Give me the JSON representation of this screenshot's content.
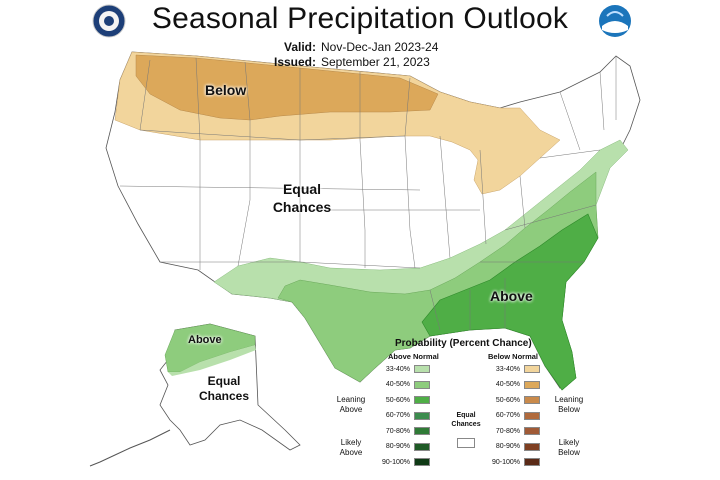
{
  "header": {
    "title": "Seasonal Precipitation Outlook",
    "valid_label": "Valid:",
    "valid_value": "Nov-Dec-Jan 2023-24",
    "issued_label": "Issued:",
    "issued_value": "September 21, 2023"
  },
  "logos": {
    "left": "doc-seal-icon",
    "right": "noaa-logo-icon"
  },
  "colors": {
    "below_40_50": "#DCA85A",
    "below_33_40": "#F2D59C",
    "above_33_40": "#B8E0AC",
    "above_40_50": "#8ECC7D",
    "above_50_60": "#4FAE46",
    "equal": "#FFFFFF"
  },
  "map_labels": {
    "below": "Below",
    "equal": "Equal Chances",
    "above": "Above",
    "ak_above": "Above",
    "ak_equal": "Equal Chances"
  },
  "legend": {
    "title": "Probability (Percent Chance)",
    "above_header": "Above Normal",
    "below_header": "Below Normal",
    "equal_label": "Equal Chances",
    "leaning_above": "Leaning Above",
    "likely_above": "Likely Above",
    "leaning_below": "Leaning Below",
    "likely_below": "Likely Below",
    "above_rows": [
      {
        "label": "33-40%",
        "color": "#B8E0AC"
      },
      {
        "label": "40-50%",
        "color": "#8ECC7D"
      },
      {
        "label": "50-60%",
        "color": "#4FAE46"
      },
      {
        "label": "60-70%",
        "color": "#3C8C4E"
      },
      {
        "label": "70-80%",
        "color": "#2F7A36"
      },
      {
        "label": "80-90%",
        "color": "#1F5A26"
      },
      {
        "label": "90-100%",
        "color": "#0F3A15"
      }
    ],
    "below_rows": [
      {
        "label": "33-40%",
        "color": "#F2D59C"
      },
      {
        "label": "40-50%",
        "color": "#DCA85A"
      },
      {
        "label": "50-60%",
        "color": "#C98A4B"
      },
      {
        "label": "60-70%",
        "color": "#B06A3C"
      },
      {
        "label": "70-80%",
        "color": "#A05A36"
      },
      {
        "label": "80-90%",
        "color": "#7F3F22"
      },
      {
        "label": "90-100%",
        "color": "#5A2A17"
      }
    ]
  }
}
